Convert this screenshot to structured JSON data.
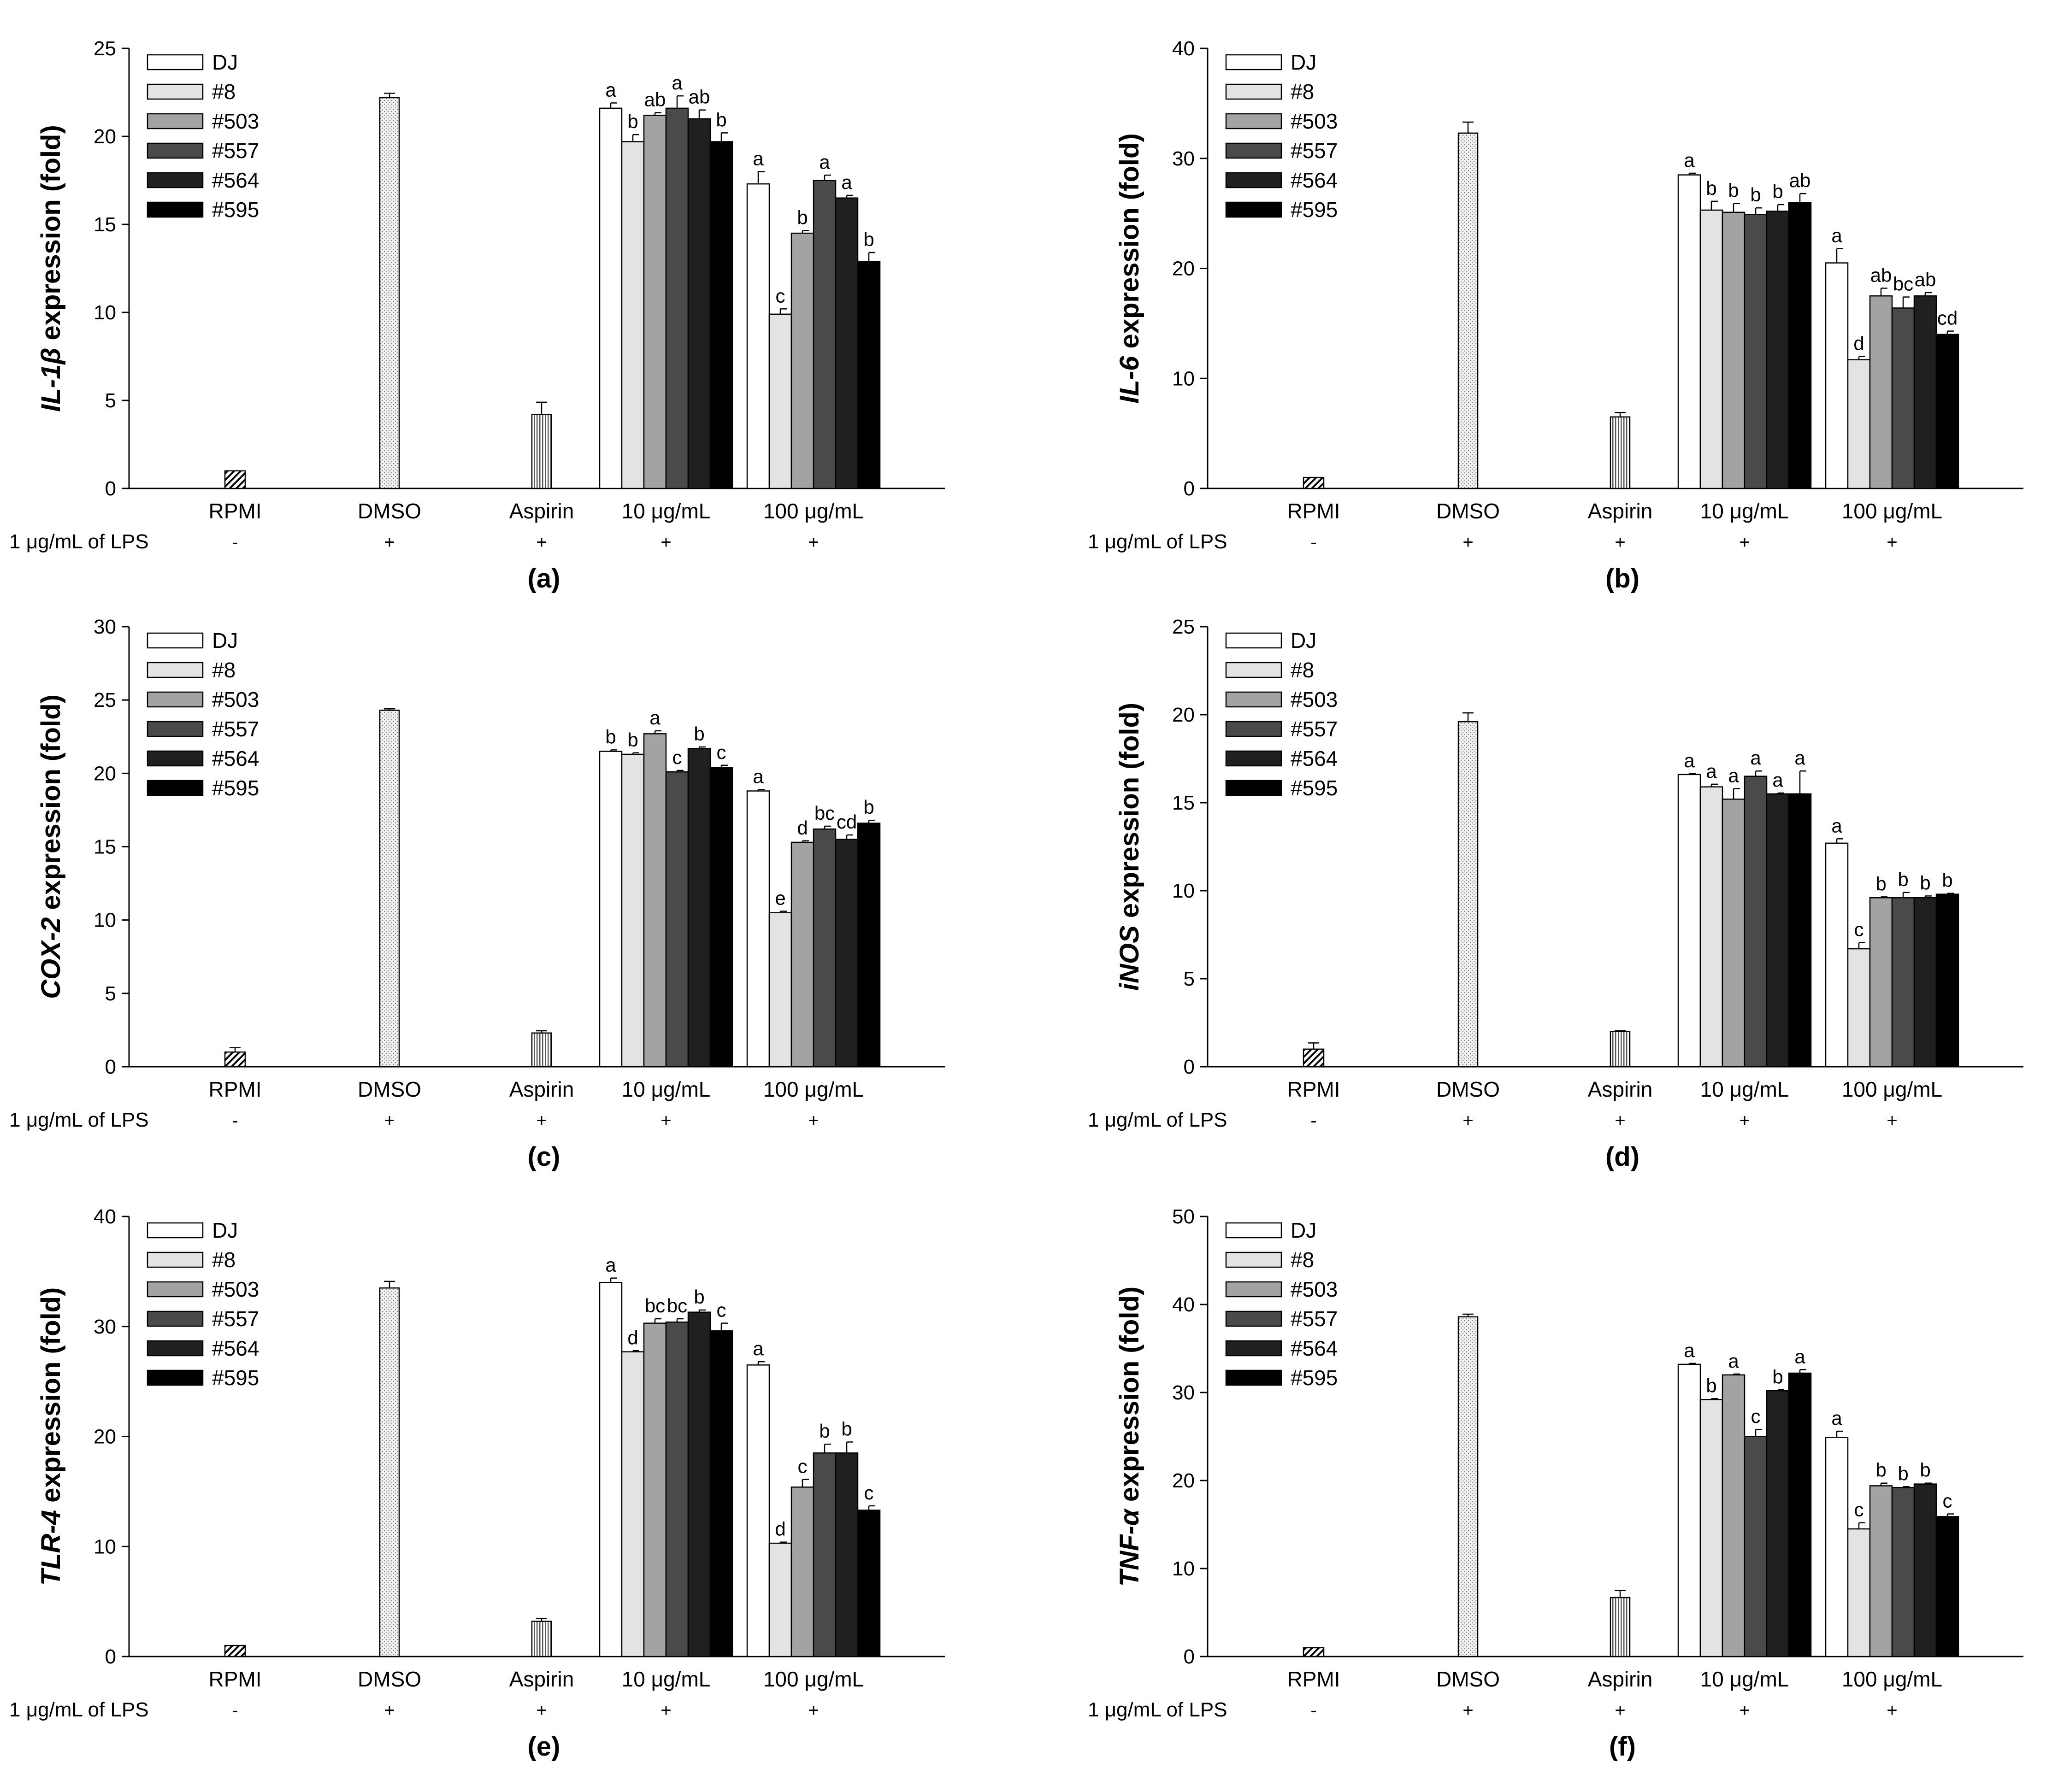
{
  "colors": {
    "DJ": "#ffffff",
    "#8": "#e3e3e3",
    "#503": "#a3a3a3",
    "#557": "#4a4a4a",
    "#564": "#202020",
    "#595": "#000000",
    "outline": "#000000"
  },
  "legend": [
    "DJ",
    "#8",
    "#503",
    "#557",
    "#564",
    "#595"
  ],
  "categories": [
    "RPMI",
    "DMSO",
    "Aspirin",
    "10 μg/mL",
    "100 μg/mL"
  ],
  "lps_label": "1 μg/mL of LPS",
  "lps_signs": [
    "-",
    "+",
    "+",
    "+",
    "+"
  ],
  "chart_data": [
    {
      "panel": "(a)",
      "type": "bar",
      "ylabel_gene": "IL-1β",
      "ylabel_suffix": " expression (fold)",
      "ylim": [
        0,
        25
      ],
      "yticks": [
        0,
        5,
        10,
        15,
        20,
        25
      ],
      "controls": {
        "RPMI": {
          "value": 1.0,
          "err": 0
        },
        "DMSO": {
          "value": 22.2,
          "err": 0.25
        },
        "Aspirin": {
          "value": 4.2,
          "err": 0.7
        }
      },
      "series": [
        {
          "name": "DJ",
          "values": [
            21.6,
            17.3
          ],
          "errors": [
            0.3,
            0.7
          ],
          "letters": [
            "a",
            "a"
          ]
        },
        {
          "name": "#8",
          "values": [
            19.7,
            9.9
          ],
          "errors": [
            0.4,
            0.3
          ],
          "letters": [
            "b",
            "c"
          ]
        },
        {
          "name": "#503",
          "values": [
            21.2,
            14.5
          ],
          "errors": [
            0.15,
            0.15
          ],
          "letters": [
            "ab",
            "b"
          ]
        },
        {
          "name": "#557",
          "values": [
            21.6,
            17.5
          ],
          "errors": [
            0.7,
            0.3
          ],
          "letters": [
            "a",
            "a"
          ]
        },
        {
          "name": "#564",
          "values": [
            21.0,
            16.5
          ],
          "errors": [
            0.5,
            0.15
          ],
          "letters": [
            "ab",
            "a"
          ]
        },
        {
          "name": "#595",
          "values": [
            19.7,
            12.9
          ],
          "errors": [
            0.5,
            0.5
          ],
          "letters": [
            "b",
            "b"
          ]
        }
      ]
    },
    {
      "panel": "(b)",
      "type": "bar",
      "ylabel_gene": "IL-6",
      "ylabel_suffix": " expression (fold)",
      "ylim": [
        0,
        40
      ],
      "yticks": [
        0,
        10,
        20,
        30,
        40
      ],
      "controls": {
        "RPMI": {
          "value": 1.0,
          "err": 0
        },
        "DMSO": {
          "value": 32.3,
          "err": 1.0
        },
        "Aspirin": {
          "value": 6.5,
          "err": 0.4
        }
      },
      "series": [
        {
          "name": "DJ",
          "values": [
            28.5,
            20.5
          ],
          "errors": [
            0.15,
            1.3
          ],
          "letters": [
            "a",
            "a"
          ]
        },
        {
          "name": "#8",
          "values": [
            25.3,
            11.7
          ],
          "errors": [
            0.8,
            0.3
          ],
          "letters": [
            "b",
            "d"
          ]
        },
        {
          "name": "#503",
          "values": [
            25.1,
            17.5
          ],
          "errors": [
            0.8,
            0.7
          ],
          "letters": [
            "b",
            "ab"
          ]
        },
        {
          "name": "#557",
          "values": [
            24.9,
            16.4
          ],
          "errors": [
            0.6,
            1.0
          ],
          "letters": [
            "b",
            "bc"
          ]
        },
        {
          "name": "#564",
          "values": [
            25.2,
            17.5
          ],
          "errors": [
            0.6,
            0.3
          ],
          "letters": [
            "b",
            "ab"
          ]
        },
        {
          "name": "#595",
          "values": [
            26.0,
            14.0
          ],
          "errors": [
            0.8,
            0.3
          ],
          "letters": [
            "ab",
            "cd"
          ]
        }
      ]
    },
    {
      "panel": "(c)",
      "type": "bar",
      "ylabel_gene": "COX-2",
      "ylabel_suffix": " expression (fold)",
      "ylim": [
        0,
        30
      ],
      "yticks": [
        0,
        5,
        10,
        15,
        20,
        25,
        30
      ],
      "controls": {
        "RPMI": {
          "value": 1.0,
          "err": 0.3
        },
        "DMSO": {
          "value": 24.3,
          "err": 0.1
        },
        "Aspirin": {
          "value": 2.3,
          "err": 0.15
        }
      },
      "series": [
        {
          "name": "DJ",
          "values": [
            21.5,
            18.8
          ],
          "errors": [
            0.1,
            0.1
          ],
          "letters": [
            "b",
            "a"
          ]
        },
        {
          "name": "#8",
          "values": [
            21.3,
            10.5
          ],
          "errors": [
            0.1,
            0.1
          ],
          "letters": [
            "b",
            "e"
          ]
        },
        {
          "name": "#503",
          "values": [
            22.7,
            15.3
          ],
          "errors": [
            0.2,
            0.1
          ],
          "letters": [
            "a",
            "d"
          ]
        },
        {
          "name": "#557",
          "values": [
            20.1,
            16.2
          ],
          "errors": [
            0.1,
            0.2
          ],
          "letters": [
            "c",
            "bc"
          ]
        },
        {
          "name": "#564",
          "values": [
            21.7,
            15.5
          ],
          "errors": [
            0.1,
            0.3
          ],
          "letters": [
            "b",
            "cd"
          ]
        },
        {
          "name": "#595",
          "values": [
            20.4,
            16.6
          ],
          "errors": [
            0.15,
            0.2
          ],
          "letters": [
            "c",
            "b"
          ]
        }
      ]
    },
    {
      "panel": "(d)",
      "type": "bar",
      "ylabel_gene": "iNOS",
      "ylabel_suffix": " expression (fold)",
      "ylim": [
        0,
        25
      ],
      "yticks": [
        0,
        5,
        10,
        15,
        20,
        25
      ],
      "controls": {
        "RPMI": {
          "value": 1.0,
          "err": 0.35
        },
        "DMSO": {
          "value": 19.6,
          "err": 0.5
        },
        "Aspirin": {
          "value": 2.0,
          "err": 0.05
        }
      },
      "series": [
        {
          "name": "DJ",
          "values": [
            16.6,
            12.7
          ],
          "errors": [
            0.05,
            0.25
          ],
          "letters": [
            "a",
            "a"
          ]
        },
        {
          "name": "#8",
          "values": [
            15.9,
            6.7
          ],
          "errors": [
            0.15,
            0.35
          ],
          "letters": [
            "a",
            "c"
          ]
        },
        {
          "name": "#503",
          "values": [
            15.2,
            9.6
          ],
          "errors": [
            0.6,
            0.05
          ],
          "letters": [
            "a",
            "b"
          ]
        },
        {
          "name": "#557",
          "values": [
            16.5,
            9.6
          ],
          "errors": [
            0.3,
            0.3
          ],
          "letters": [
            "a",
            "b"
          ]
        },
        {
          "name": "#564",
          "values": [
            15.5,
            9.6
          ],
          "errors": [
            0.05,
            0.1
          ],
          "letters": [
            "a",
            "b"
          ]
        },
        {
          "name": "#595",
          "values": [
            15.5,
            9.8
          ],
          "errors": [
            1.3,
            0.05
          ],
          "letters": [
            "a",
            "b"
          ]
        }
      ]
    },
    {
      "panel": "(e)",
      "type": "bar",
      "ylabel_gene": "TLR-4",
      "ylabel_suffix": " expression (fold)",
      "ylim": [
        0,
        40
      ],
      "yticks": [
        0,
        10,
        20,
        30,
        40
      ],
      "controls": {
        "RPMI": {
          "value": 1.0,
          "err": 0
        },
        "DMSO": {
          "value": 33.5,
          "err": 0.6
        },
        "Aspirin": {
          "value": 3.2,
          "err": 0.25
        }
      },
      "series": [
        {
          "name": "DJ",
          "values": [
            34.0,
            26.5
          ],
          "errors": [
            0.4,
            0.3
          ],
          "letters": [
            "a",
            "a"
          ]
        },
        {
          "name": "#8",
          "values": [
            27.7,
            10.3
          ],
          "errors": [
            0.1,
            0.1
          ],
          "letters": [
            "d",
            "d"
          ]
        },
        {
          "name": "#503",
          "values": [
            30.3,
            15.4
          ],
          "errors": [
            0.4,
            0.7
          ],
          "letters": [
            "bc",
            "c"
          ]
        },
        {
          "name": "#557",
          "values": [
            30.4,
            18.5
          ],
          "errors": [
            0.3,
            0.8
          ],
          "letters": [
            "bc",
            "b"
          ]
        },
        {
          "name": "#564",
          "values": [
            31.3,
            18.5
          ],
          "errors": [
            0.2,
            1.0
          ],
          "letters": [
            "b",
            "b"
          ]
        },
        {
          "name": "#595",
          "values": [
            29.6,
            13.3
          ],
          "errors": [
            0.7,
            0.4
          ],
          "letters": [
            "c",
            "c"
          ]
        }
      ]
    },
    {
      "panel": "(f)",
      "type": "bar",
      "ylabel_gene": "TNF-α",
      "ylabel_suffix": " expression (fold)",
      "ylim": [
        0,
        50
      ],
      "yticks": [
        0,
        10,
        20,
        30,
        40,
        50
      ],
      "controls": {
        "RPMI": {
          "value": 1.0,
          "err": 0
        },
        "DMSO": {
          "value": 38.6,
          "err": 0.3
        },
        "Aspirin": {
          "value": 6.7,
          "err": 0.8
        }
      },
      "series": [
        {
          "name": "DJ",
          "values": [
            33.2,
            24.9
          ],
          "errors": [
            0.1,
            0.7
          ],
          "letters": [
            "a",
            "a"
          ]
        },
        {
          "name": "#8",
          "values": [
            29.2,
            14.5
          ],
          "errors": [
            0.1,
            0.7
          ],
          "letters": [
            "b",
            "c"
          ]
        },
        {
          "name": "#503",
          "values": [
            32.0,
            19.4
          ],
          "errors": [
            0.1,
            0.3
          ],
          "letters": [
            "a",
            "b"
          ]
        },
        {
          "name": "#557",
          "values": [
            25.0,
            19.2
          ],
          "errors": [
            0.8,
            0.1
          ],
          "letters": [
            "c",
            "b"
          ]
        },
        {
          "name": "#564",
          "values": [
            30.2,
            19.6
          ],
          "errors": [
            0.1,
            0.1
          ],
          "letters": [
            "b",
            "b"
          ]
        },
        {
          "name": "#595",
          "values": [
            32.2,
            15.9
          ],
          "errors": [
            0.4,
            0.3
          ],
          "letters": [
            "a",
            "c"
          ]
        }
      ]
    }
  ]
}
